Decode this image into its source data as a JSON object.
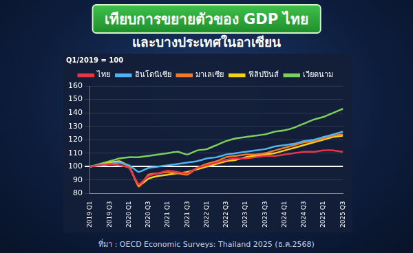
{
  "chart_data": {
    "type": "line",
    "title": "เทียบการขยายตัวของ GDP ไทย",
    "subtitle": "และบางประเทศในอาเซียน",
    "y_label": "Q1/2019 = 100",
    "source": "ที่มา : OECD Economic Surveys: Thailand 2025 (ธ.ค.2568)",
    "categories": [
      "2019 Q1",
      null,
      "2019 Q3",
      null,
      "2020 Q1",
      null,
      "2020 Q3",
      null,
      "2021 Q1",
      null,
      "2021 Q3",
      null,
      "2022 Q1",
      null,
      "2022 Q3",
      null,
      "2023 Q1",
      null,
      "2023 Q3",
      null,
      "2024 Q1",
      null,
      "2024 Q3",
      null,
      "2025 Q1",
      null,
      "2025 Q3"
    ],
    "series": [
      {
        "name": "ไทย",
        "color": "#e8344a",
        "values": [
          100,
          101,
          102,
          101,
          99,
          87,
          93,
          95,
          97,
          96,
          95,
          99,
          101,
          103,
          105,
          106,
          106,
          107,
          108,
          108,
          109,
          110,
          111,
          111,
          112,
          112,
          111
        ]
      },
      {
        "name": "อินโดนีเซีย",
        "color": "#4fb3f0",
        "values": [
          100,
          101,
          102,
          103,
          101,
          96,
          99,
          100,
          101,
          102,
          103,
          104,
          106,
          107,
          109,
          110,
          111,
          112,
          113,
          115,
          116,
          117,
          119,
          120,
          122,
          124,
          126
        ]
      },
      {
        "name": "มาเลเซีย",
        "color": "#f07a2a",
        "values": [
          100,
          101,
          102,
          103,
          100,
          85,
          94,
          95,
          96,
          95,
          94,
          99,
          102,
          104,
          107,
          108,
          109,
          109,
          110,
          112,
          114,
          116,
          118,
          119,
          121,
          123,
          124
        ]
      },
      {
        "name": "ฟิลิปปินส์",
        "color": "#f5d020",
        "values": [
          100,
          101,
          103,
          104,
          100,
          86,
          91,
          93,
          94,
          95,
          96,
          98,
          100,
          102,
          104,
          105,
          107,
          108,
          109,
          110,
          112,
          114,
          116,
          118,
          120,
          122,
          123
        ]
      },
      {
        "name": "เวียดนาม",
        "color": "#7ccf5a",
        "values": [
          100,
          102,
          104,
          106,
          107,
          107,
          108,
          109,
          110,
          111,
          109,
          112,
          113,
          116,
          119,
          121,
          122,
          123,
          124,
          126,
          127,
          129,
          132,
          135,
          137,
          140,
          143
        ]
      }
    ],
    "ylim": [
      80,
      160
    ],
    "yticks": [
      80,
      90,
      100,
      110,
      120,
      130,
      140,
      150,
      160
    ],
    "grid": true,
    "legend": "top"
  }
}
